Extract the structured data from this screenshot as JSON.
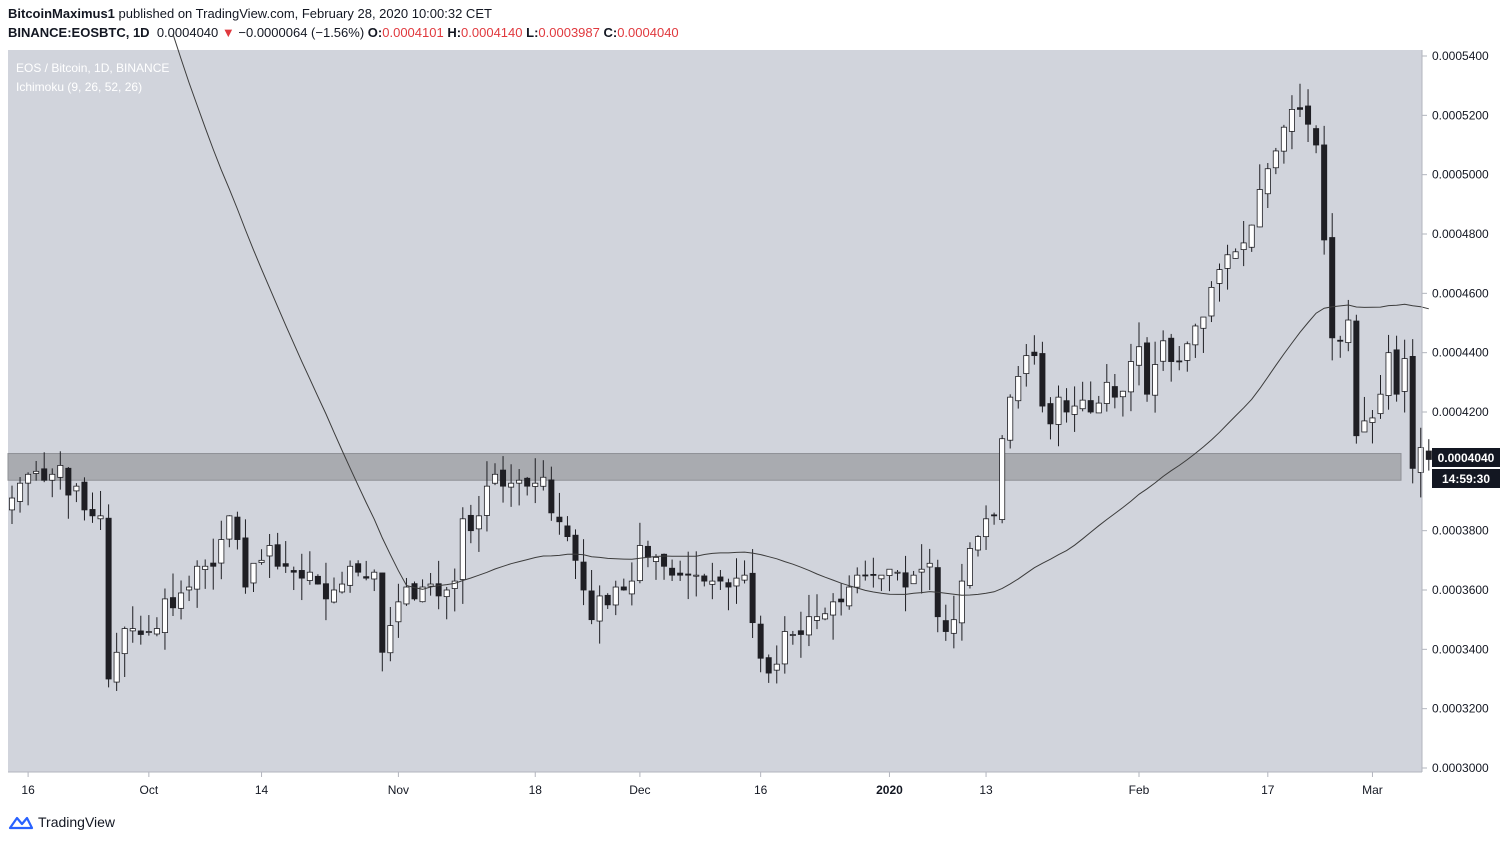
{
  "header": {
    "author": "BitcoinMaximus1",
    "published_text": "published on TradingView.com, February 28, 2020 10:00:32 CET",
    "symbol": "BINANCE:EOSBTC, 1D",
    "last": "0.0004040",
    "change_arrow": "▼",
    "change": "−0.0000064 (−1.56%)",
    "o_label": "O:",
    "o_value": "0.0004101",
    "h_label": "H:",
    "h_value": "0.0004140",
    "l_label": "L:",
    "l_value": "0.0003987",
    "c_label": "C:",
    "c_value": "0.0004040"
  },
  "legend": {
    "title": "EOS / Bitcoin, 1D, BINANCE",
    "indicator": "Ichimoku (9, 26, 52, 26)"
  },
  "price_label": "0.0004040",
  "countdown_label": "14:59:30",
  "footer": {
    "brand": "TradingView",
    "logo_icon": "tradingview-logo-icon"
  },
  "colors": {
    "chart_bg": "#d1d4dc",
    "zone": "#a9abb0",
    "up_body": "#ffffff",
    "down_body": "#1f1f24",
    "wick": "#1f1f24",
    "ma_line": "#3c3c3c",
    "accent_red": "#e0393e",
    "logo_blue": "#2962ff"
  },
  "chart_data": {
    "type": "candlestick",
    "y_range": [
      0.000298,
      0.000545
    ],
    "y_ticks": [
      "0.0005400",
      "0.0005200",
      "0.0005000",
      "0.0004800",
      "0.0004600",
      "0.0004400",
      "0.0004200",
      "0.0004040",
      "0.0003800",
      "0.0003600",
      "0.0003400",
      "0.0003200",
      "0.0003000"
    ],
    "y_tick_values": [
      0.00054,
      0.00052,
      0.0005,
      0.00048,
      0.00046,
      0.00044,
      0.00042,
      0.000404,
      0.00038,
      0.00036,
      0.00034,
      0.00032,
      0.0003
    ],
    "x_ticks": [
      {
        "label": "16",
        "index": 2
      },
      {
        "label": "Oct",
        "index": 17
      },
      {
        "label": "14",
        "index": 31
      },
      {
        "label": "Nov",
        "index": 48
      },
      {
        "label": "18",
        "index": 65
      },
      {
        "label": "Dec",
        "index": 78
      },
      {
        "label": "16",
        "index": 93
      },
      {
        "label": "2020",
        "index": 109
      },
      {
        "label": "13",
        "index": 121
      },
      {
        "label": "Feb",
        "index": 140
      },
      {
        "label": "17",
        "index": 156
      },
      {
        "label": "Mar",
        "index": 169
      }
    ],
    "zone": {
      "low": 0.000397,
      "high": 0.000406
    },
    "close_series": [
      0.000391,
      0.000396,
      0.000399,
      0.0004,
      0.000397,
      0.000399,
      0.000402,
      0.000392,
      0.000395,
      0.000387,
      0.000385,
      0.000385,
      0.00033,
      0.000339,
      0.000347,
      0.000347,
      0.000345,
      0.000346,
      0.000347,
      0.000357,
      0.000354,
      0.000359,
      0.000361,
      0.000368,
      0.000368,
      0.000368,
      0.000377,
      0.000385,
      0.000377,
      0.000361,
      0.000369,
      0.00037,
      0.000375,
      0.000368,
      0.000368,
      0.000366,
      0.000364,
      0.000366,
      0.000362,
      0.000357,
      0.00036,
      0.000362,
      0.000368,
      0.000366,
      0.000364,
      0.000366,
      0.000339,
      0.000348,
      0.000356,
      0.000361,
      0.000357,
      0.000361,
      0.000362,
      0.000358,
      0.00036,
      0.000363,
      0.000384,
      0.00038,
      0.000385,
      0.000395,
      0.000399,
      0.000395,
      0.000396,
      0.000397,
      0.000395,
      0.000396,
      0.000398,
      0.000386,
      0.000383,
      0.000378,
      0.00037,
      0.00036,
      0.00035,
      0.000358,
      0.000355,
      0.000361,
      0.00036,
      0.000363,
      0.000375,
      0.000371,
      0.000371,
      0.000368,
      0.000365,
      0.000365,
      0.000365,
      0.000365,
      0.000363,
      0.000363,
      0.000363,
      0.000361,
      0.000364,
      0.000365,
      0.000349,
      0.000337,
      0.000332,
      0.000335,
      0.000346,
      0.000345,
      0.000345,
      0.000351,
      0.000351,
      0.000352,
      0.000356,
      0.000356,
      0.000361,
      0.000365,
      0.000365,
      0.000365,
      0.000365,
      0.000367,
      0.000366,
      0.000361,
      0.000365,
      0.000367,
      0.000369,
      0.000351,
      0.000346,
      0.00035,
      0.000363,
      0.000374,
      0.000378,
      0.000384,
      0.000385,
      0.000411,
      0.000425,
      0.000432,
      0.000439,
      0.000439,
      0.000422,
      0.000416,
      0.000425,
      0.00042,
      0.000422,
      0.000424,
      0.00042,
      0.000423,
      0.00043,
      0.000425,
      0.000427,
      0.000437,
      0.000442,
      0.000426,
      0.000436,
      0.000444,
      0.000437,
      0.000437,
      0.000443,
      0.000449,
      0.000452,
      0.000462,
      0.000468,
      0.000473,
      0.000474,
      0.000477,
      0.000483,
      0.000495,
      0.000502,
      0.000508,
      0.000516,
      0.000522,
      0.000522,
      0.000517,
      0.00051,
      0.000478,
      0.000445,
      0.000444,
      0.000451,
      0.000412,
      0.000417,
      0.000418,
      0.000426,
      0.00044,
      0.000426,
      0.000438,
      0.000401,
      0.000408,
      0.000404
    ]
  }
}
